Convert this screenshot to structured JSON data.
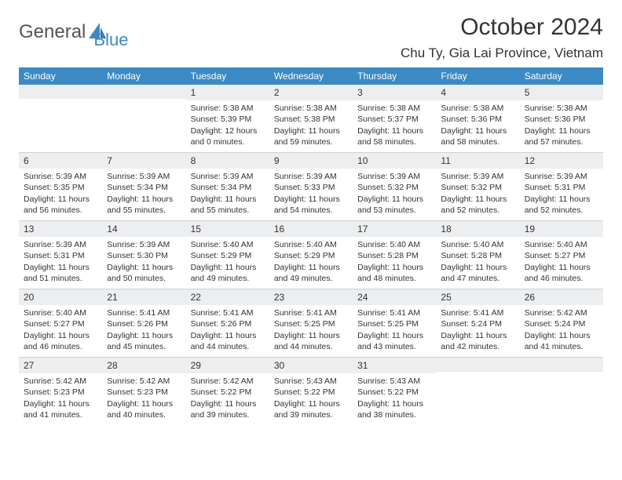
{
  "logo": {
    "text1": "General",
    "text2": "Blue"
  },
  "title": {
    "monthYear": "October 2024",
    "location": "Chu Ty, Gia Lai Province, Vietnam"
  },
  "colors": {
    "headerBar": "#3b8ac4",
    "dayNumBg": "#eceef0",
    "rowDivider": "#d0d0d0",
    "logoAccent": "#3b8ac4",
    "text": "#333333",
    "background": "#ffffff"
  },
  "layout": {
    "columns": 7,
    "rows": 5,
    "cellFontSize": 10.5,
    "headerFontSize": 12
  },
  "weekdays": [
    "Sunday",
    "Monday",
    "Tuesday",
    "Wednesday",
    "Thursday",
    "Friday",
    "Saturday"
  ],
  "weeks": [
    [
      {
        "day": "",
        "sunrise": "",
        "sunset": "",
        "daylight": ""
      },
      {
        "day": "",
        "sunrise": "",
        "sunset": "",
        "daylight": ""
      },
      {
        "day": "1",
        "sunrise": "Sunrise: 5:38 AM",
        "sunset": "Sunset: 5:39 PM",
        "daylight": "Daylight: 12 hours and 0 minutes."
      },
      {
        "day": "2",
        "sunrise": "Sunrise: 5:38 AM",
        "sunset": "Sunset: 5:38 PM",
        "daylight": "Daylight: 11 hours and 59 minutes."
      },
      {
        "day": "3",
        "sunrise": "Sunrise: 5:38 AM",
        "sunset": "Sunset: 5:37 PM",
        "daylight": "Daylight: 11 hours and 58 minutes."
      },
      {
        "day": "4",
        "sunrise": "Sunrise: 5:38 AM",
        "sunset": "Sunset: 5:36 PM",
        "daylight": "Daylight: 11 hours and 58 minutes."
      },
      {
        "day": "5",
        "sunrise": "Sunrise: 5:38 AM",
        "sunset": "Sunset: 5:36 PM",
        "daylight": "Daylight: 11 hours and 57 minutes."
      }
    ],
    [
      {
        "day": "6",
        "sunrise": "Sunrise: 5:39 AM",
        "sunset": "Sunset: 5:35 PM",
        "daylight": "Daylight: 11 hours and 56 minutes."
      },
      {
        "day": "7",
        "sunrise": "Sunrise: 5:39 AM",
        "sunset": "Sunset: 5:34 PM",
        "daylight": "Daylight: 11 hours and 55 minutes."
      },
      {
        "day": "8",
        "sunrise": "Sunrise: 5:39 AM",
        "sunset": "Sunset: 5:34 PM",
        "daylight": "Daylight: 11 hours and 55 minutes."
      },
      {
        "day": "9",
        "sunrise": "Sunrise: 5:39 AM",
        "sunset": "Sunset: 5:33 PM",
        "daylight": "Daylight: 11 hours and 54 minutes."
      },
      {
        "day": "10",
        "sunrise": "Sunrise: 5:39 AM",
        "sunset": "Sunset: 5:32 PM",
        "daylight": "Daylight: 11 hours and 53 minutes."
      },
      {
        "day": "11",
        "sunrise": "Sunrise: 5:39 AM",
        "sunset": "Sunset: 5:32 PM",
        "daylight": "Daylight: 11 hours and 52 minutes."
      },
      {
        "day": "12",
        "sunrise": "Sunrise: 5:39 AM",
        "sunset": "Sunset: 5:31 PM",
        "daylight": "Daylight: 11 hours and 52 minutes."
      }
    ],
    [
      {
        "day": "13",
        "sunrise": "Sunrise: 5:39 AM",
        "sunset": "Sunset: 5:31 PM",
        "daylight": "Daylight: 11 hours and 51 minutes."
      },
      {
        "day": "14",
        "sunrise": "Sunrise: 5:39 AM",
        "sunset": "Sunset: 5:30 PM",
        "daylight": "Daylight: 11 hours and 50 minutes."
      },
      {
        "day": "15",
        "sunrise": "Sunrise: 5:40 AM",
        "sunset": "Sunset: 5:29 PM",
        "daylight": "Daylight: 11 hours and 49 minutes."
      },
      {
        "day": "16",
        "sunrise": "Sunrise: 5:40 AM",
        "sunset": "Sunset: 5:29 PM",
        "daylight": "Daylight: 11 hours and 49 minutes."
      },
      {
        "day": "17",
        "sunrise": "Sunrise: 5:40 AM",
        "sunset": "Sunset: 5:28 PM",
        "daylight": "Daylight: 11 hours and 48 minutes."
      },
      {
        "day": "18",
        "sunrise": "Sunrise: 5:40 AM",
        "sunset": "Sunset: 5:28 PM",
        "daylight": "Daylight: 11 hours and 47 minutes."
      },
      {
        "day": "19",
        "sunrise": "Sunrise: 5:40 AM",
        "sunset": "Sunset: 5:27 PM",
        "daylight": "Daylight: 11 hours and 46 minutes."
      }
    ],
    [
      {
        "day": "20",
        "sunrise": "Sunrise: 5:40 AM",
        "sunset": "Sunset: 5:27 PM",
        "daylight": "Daylight: 11 hours and 46 minutes."
      },
      {
        "day": "21",
        "sunrise": "Sunrise: 5:41 AM",
        "sunset": "Sunset: 5:26 PM",
        "daylight": "Daylight: 11 hours and 45 minutes."
      },
      {
        "day": "22",
        "sunrise": "Sunrise: 5:41 AM",
        "sunset": "Sunset: 5:26 PM",
        "daylight": "Daylight: 11 hours and 44 minutes."
      },
      {
        "day": "23",
        "sunrise": "Sunrise: 5:41 AM",
        "sunset": "Sunset: 5:25 PM",
        "daylight": "Daylight: 11 hours and 44 minutes."
      },
      {
        "day": "24",
        "sunrise": "Sunrise: 5:41 AM",
        "sunset": "Sunset: 5:25 PM",
        "daylight": "Daylight: 11 hours and 43 minutes."
      },
      {
        "day": "25",
        "sunrise": "Sunrise: 5:41 AM",
        "sunset": "Sunset: 5:24 PM",
        "daylight": "Daylight: 11 hours and 42 minutes."
      },
      {
        "day": "26",
        "sunrise": "Sunrise: 5:42 AM",
        "sunset": "Sunset: 5:24 PM",
        "daylight": "Daylight: 11 hours and 41 minutes."
      }
    ],
    [
      {
        "day": "27",
        "sunrise": "Sunrise: 5:42 AM",
        "sunset": "Sunset: 5:23 PM",
        "daylight": "Daylight: 11 hours and 41 minutes."
      },
      {
        "day": "28",
        "sunrise": "Sunrise: 5:42 AM",
        "sunset": "Sunset: 5:23 PM",
        "daylight": "Daylight: 11 hours and 40 minutes."
      },
      {
        "day": "29",
        "sunrise": "Sunrise: 5:42 AM",
        "sunset": "Sunset: 5:22 PM",
        "daylight": "Daylight: 11 hours and 39 minutes."
      },
      {
        "day": "30",
        "sunrise": "Sunrise: 5:43 AM",
        "sunset": "Sunset: 5:22 PM",
        "daylight": "Daylight: 11 hours and 39 minutes."
      },
      {
        "day": "31",
        "sunrise": "Sunrise: 5:43 AM",
        "sunset": "Sunset: 5:22 PM",
        "daylight": "Daylight: 11 hours and 38 minutes."
      },
      {
        "day": "",
        "sunrise": "",
        "sunset": "",
        "daylight": ""
      },
      {
        "day": "",
        "sunrise": "",
        "sunset": "",
        "daylight": ""
      }
    ]
  ]
}
